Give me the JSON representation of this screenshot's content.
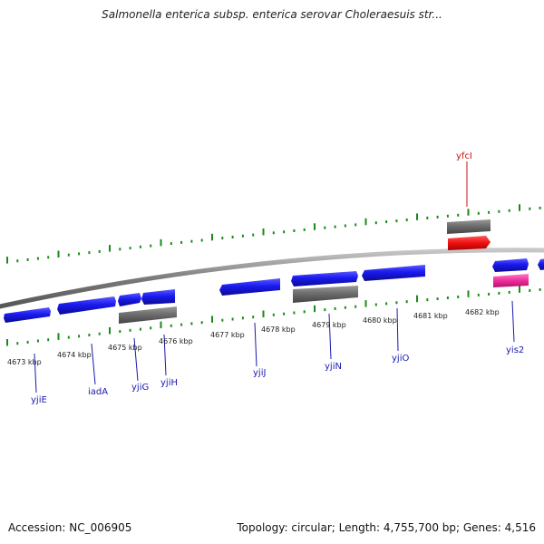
{
  "title": "Salmonella enterica subsp. enterica serovar Choleraesuis str...",
  "footer": {
    "accession": "Accession: NC_006905",
    "topology": "Topology: circular; Length: 4,755,700 bp; Genes: 4,516"
  },
  "kbp_labels": [
    "4673 kbp",
    "4674 kbp",
    "4675 kbp",
    "4676 kbp",
    "4677 kbp",
    "4678 kbp",
    "4679 kbp",
    "4680 kbp",
    "4681 kbp",
    "4682 kbp"
  ],
  "gene_labels": {
    "yfcI": "yfcI",
    "yjiE": "yjiE",
    "iadA": "iadA",
    "yjiG": "yjiG",
    "yjiH": "yjiH",
    "yjiJ": "yjiJ",
    "yjiN": "yjiN",
    "yjiO": "yjiO",
    "yis2": "yis2"
  },
  "colors": {
    "backbone": "#8c8c8c",
    "gene_blue": "#1010e0",
    "gene_gray": "#6b6b6b",
    "gene_red": "#ee1111",
    "gene_pink": "#ee2d9a",
    "ticks": "#1a8a1a",
    "label_blue": "#1818b0",
    "label_red": "#cc1111"
  }
}
